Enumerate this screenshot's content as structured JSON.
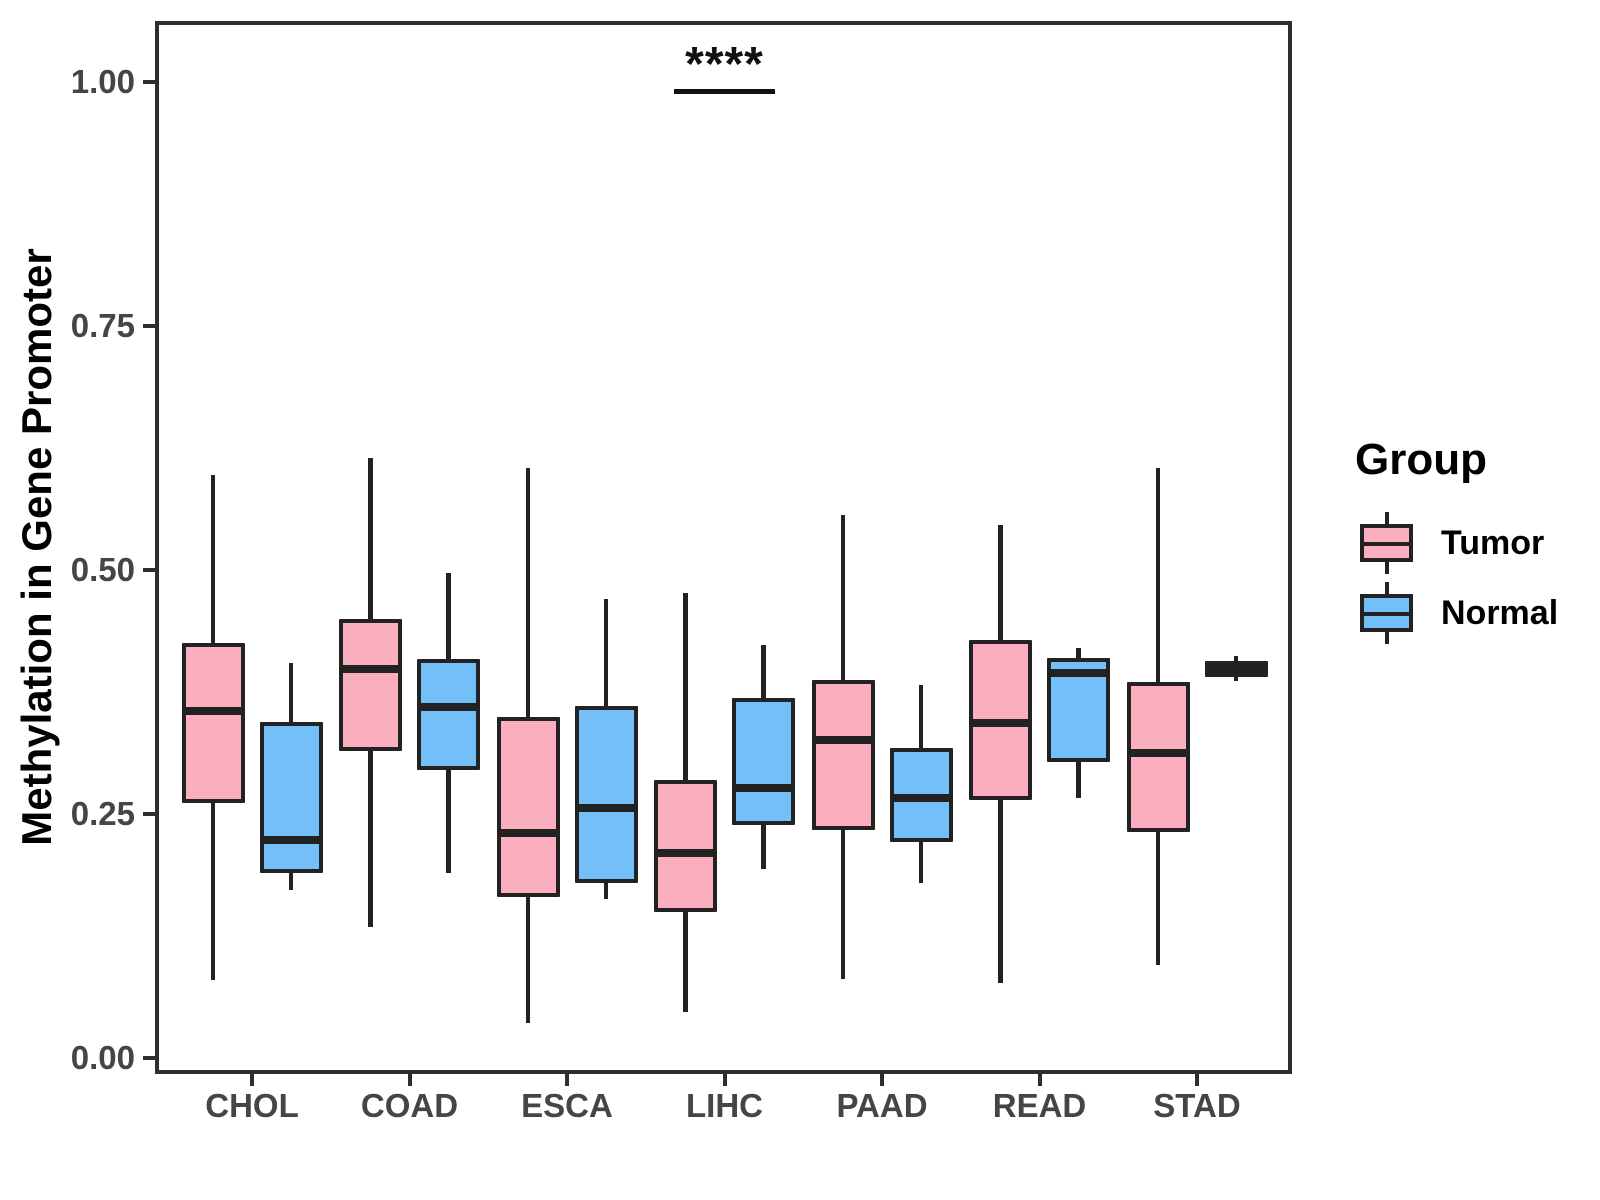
{
  "chart_data": {
    "type": "boxplot",
    "title": "",
    "xlabel": "",
    "ylabel": "Methylation in Gene Promoter",
    "ylim": [
      0.0,
      1.06
    ],
    "grid": false,
    "categories": [
      "CHOL",
      "COAD",
      "ESCA",
      "LIHC",
      "PAAD",
      "READ",
      "STAD"
    ],
    "yticks": [
      {
        "label": "0.00",
        "value": 0.0
      },
      {
        "label": "0.25",
        "value": 0.25
      },
      {
        "label": "0.50",
        "value": 0.5
      },
      {
        "label": "0.75",
        "value": 0.75
      },
      {
        "label": "1.00",
        "value": 1.0
      }
    ],
    "box_border_color": "#222222",
    "series": [
      {
        "name": "Tumor",
        "color": "#FBAEBE",
        "boxes": [
          {
            "category": "CHOL",
            "low": 0.08,
            "q1": 0.261,
            "median": 0.356,
            "q3": 0.425,
            "high": 0.597
          },
          {
            "category": "COAD",
            "low": 0.134,
            "q1": 0.315,
            "median": 0.399,
            "q3": 0.45,
            "high": 0.615
          },
          {
            "category": "ESCA",
            "low": 0.036,
            "q1": 0.165,
            "median": 0.231,
            "q3": 0.349,
            "high": 0.605
          },
          {
            "category": "LIHC",
            "low": 0.047,
            "q1": 0.15,
            "median": 0.21,
            "q3": 0.285,
            "high": 0.476
          },
          {
            "category": "PAAD",
            "low": 0.081,
            "q1": 0.234,
            "median": 0.326,
            "q3": 0.387,
            "high": 0.556
          },
          {
            "category": "READ",
            "low": 0.077,
            "q1": 0.264,
            "median": 0.343,
            "q3": 0.428,
            "high": 0.546
          },
          {
            "category": "STAD",
            "low": 0.095,
            "q1": 0.232,
            "median": 0.313,
            "q3": 0.385,
            "high": 0.605
          }
        ]
      },
      {
        "name": "Normal",
        "color": "#73C0F8",
        "boxes": [
          {
            "category": "CHOL",
            "low": 0.172,
            "q1": 0.19,
            "median": 0.223,
            "q3": 0.344,
            "high": 0.405
          },
          {
            "category": "COAD",
            "low": 0.19,
            "q1": 0.295,
            "median": 0.36,
            "q3": 0.409,
            "high": 0.497
          },
          {
            "category": "ESCA",
            "low": 0.163,
            "q1": 0.179,
            "median": 0.256,
            "q3": 0.361,
            "high": 0.47
          },
          {
            "category": "LIHC",
            "low": 0.194,
            "q1": 0.239,
            "median": 0.277,
            "q3": 0.369,
            "high": 0.423
          },
          {
            "category": "PAAD",
            "low": 0.179,
            "q1": 0.221,
            "median": 0.266,
            "q3": 0.318,
            "high": 0.382
          },
          {
            "category": "READ",
            "low": 0.266,
            "q1": 0.303,
            "median": 0.394,
            "q3": 0.41,
            "high": 0.42
          },
          {
            "category": "STAD",
            "low": 0.386,
            "q1": 0.39,
            "median": 0.399,
            "q3": 0.407,
            "high": 0.412
          }
        ]
      }
    ],
    "legend": {
      "title": "Group",
      "position": "right",
      "entries": [
        {
          "label": "Tumor",
          "color": "#FBAEBE"
        },
        {
          "label": "Normal",
          "color": "#73C0F8"
        }
      ]
    },
    "annotation": {
      "text": "****",
      "category": "LIHC",
      "y": 0.99
    }
  }
}
